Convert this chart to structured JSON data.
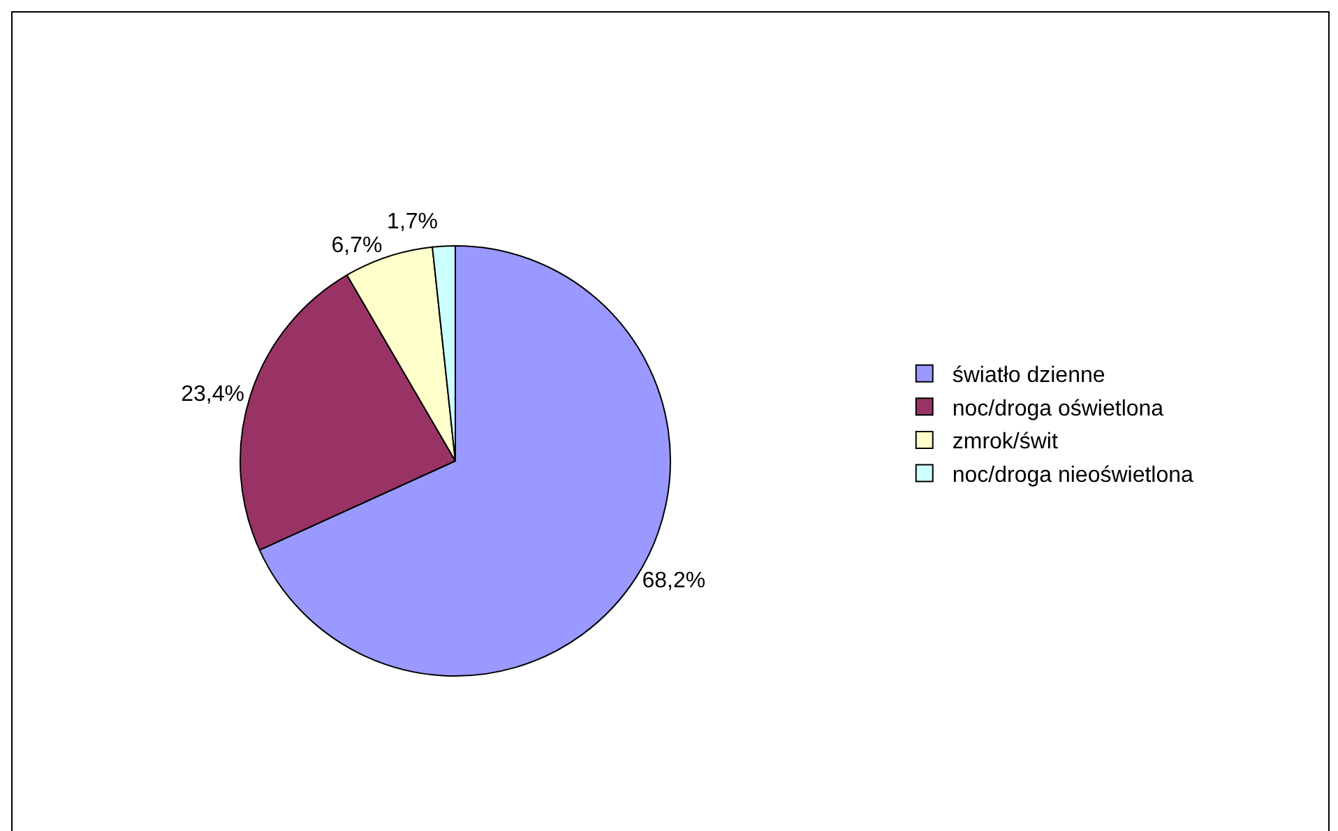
{
  "chart_data": {
    "type": "pie",
    "categories": [
      "światło dzienne",
      "noc/droga oświetlona",
      "zmrok/świt",
      "noc/droga nieoświetlona"
    ],
    "values": [
      68.2,
      23.4,
      6.7,
      1.7
    ],
    "colors": [
      "#9999ff",
      "#993366",
      "#ffffcc",
      "#ccffff"
    ],
    "value_labels": [
      "68,2%",
      "23,4%",
      "6,7%",
      "1,7%"
    ],
    "legend": "right"
  }
}
